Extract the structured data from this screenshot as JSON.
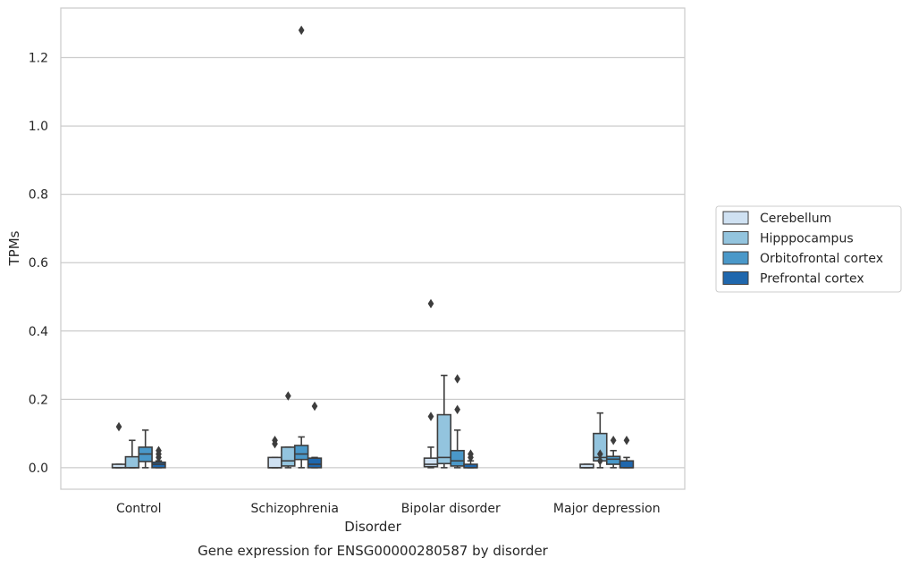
{
  "chart_data": {
    "type": "box",
    "xlabel": "Disorder",
    "ylabel": "TPMs",
    "caption": "Gene expression for ENSG00000280587 by disorder",
    "ylim": [
      -0.063,
      1.345
    ],
    "yticks": [
      0.0,
      0.2,
      0.4,
      0.6,
      0.8,
      1.0,
      1.2
    ],
    "ytick_labels": [
      "0.0",
      "0.2",
      "0.4",
      "0.6",
      "0.8",
      "1.0",
      "1.2"
    ],
    "grid": "horizontal",
    "legend_placement": "right-center",
    "categories": [
      "Control",
      "Schizophrenia",
      "Bipolar disorder",
      "Major depression"
    ],
    "series": [
      {
        "name": "Cerebellum",
        "color": "#cfe1f2",
        "boxes": [
          {
            "whislo": 0.0,
            "q1": 0.0,
            "med": 0.0,
            "q3": 0.01,
            "whishi": 0.01,
            "fliers": [
              0.12
            ]
          },
          {
            "whislo": 0.0,
            "q1": 0.0,
            "med": 0.0,
            "q3": 0.03,
            "whishi": 0.03,
            "fliers": [
              0.07,
              0.08
            ]
          },
          {
            "whislo": 0.0,
            "q1": 0.003,
            "med": 0.01,
            "q3": 0.028,
            "whishi": 0.06,
            "fliers": [
              0.15,
              0.48
            ]
          },
          {
            "whislo": 0.0,
            "q1": 0.0,
            "med": 0.0,
            "q3": 0.01,
            "whishi": 0.01,
            "fliers": []
          }
        ]
      },
      {
        "name": "Hipppocampus",
        "color": "#93c4de",
        "boxes": [
          {
            "whislo": 0.0,
            "q1": 0.0,
            "med": 0.0,
            "q3": 0.032,
            "whishi": 0.08,
            "fliers": []
          },
          {
            "whislo": 0.0,
            "q1": 0.005,
            "med": 0.02,
            "q3": 0.06,
            "whishi": 0.06,
            "fliers": [
              0.21
            ]
          },
          {
            "whislo": 0.0,
            "q1": 0.012,
            "med": 0.03,
            "q3": 0.155,
            "whishi": 0.27,
            "fliers": []
          },
          {
            "whislo": 0.0,
            "q1": 0.02,
            "med": 0.03,
            "q3": 0.1,
            "whishi": 0.16,
            "fliers": [
              0.02,
              0.04
            ]
          }
        ]
      },
      {
        "name": "Orbitofrontal cortex",
        "color": "#4a98c9",
        "boxes": [
          {
            "whislo": 0.0,
            "q1": 0.018,
            "med": 0.04,
            "q3": 0.06,
            "whishi": 0.11,
            "fliers": []
          },
          {
            "whislo": 0.0,
            "q1": 0.024,
            "med": 0.04,
            "q3": 0.065,
            "whishi": 0.09,
            "fliers": [
              1.28
            ]
          },
          {
            "whislo": 0.0,
            "q1": 0.005,
            "med": 0.02,
            "q3": 0.05,
            "whishi": 0.11,
            "fliers": [
              0.17,
              0.26
            ]
          },
          {
            "whislo": 0.0,
            "q1": 0.01,
            "med": 0.025,
            "q3": 0.033,
            "whishi": 0.05,
            "fliers": [
              0.08
            ]
          }
        ]
      },
      {
        "name": "Prefrontal cortex",
        "color": "#1f67ad",
        "boxes": [
          {
            "whislo": 0.0,
            "q1": 0.0,
            "med": 0.01,
            "q3": 0.016,
            "whishi": 0.02,
            "fliers": [
              0.03,
              0.04,
              0.05
            ]
          },
          {
            "whislo": 0.0,
            "q1": 0.0,
            "med": 0.01,
            "q3": 0.028,
            "whishi": 0.03,
            "fliers": [
              0.18
            ]
          },
          {
            "whislo": 0.0,
            "q1": 0.0,
            "med": 0.0,
            "q3": 0.01,
            "whishi": 0.02,
            "fliers": [
              0.03,
              0.04
            ]
          },
          {
            "whislo": 0.0,
            "q1": 0.0,
            "med": 0.0,
            "q3": 0.02,
            "whishi": 0.03,
            "fliers": [
              0.08
            ]
          }
        ]
      }
    ]
  }
}
